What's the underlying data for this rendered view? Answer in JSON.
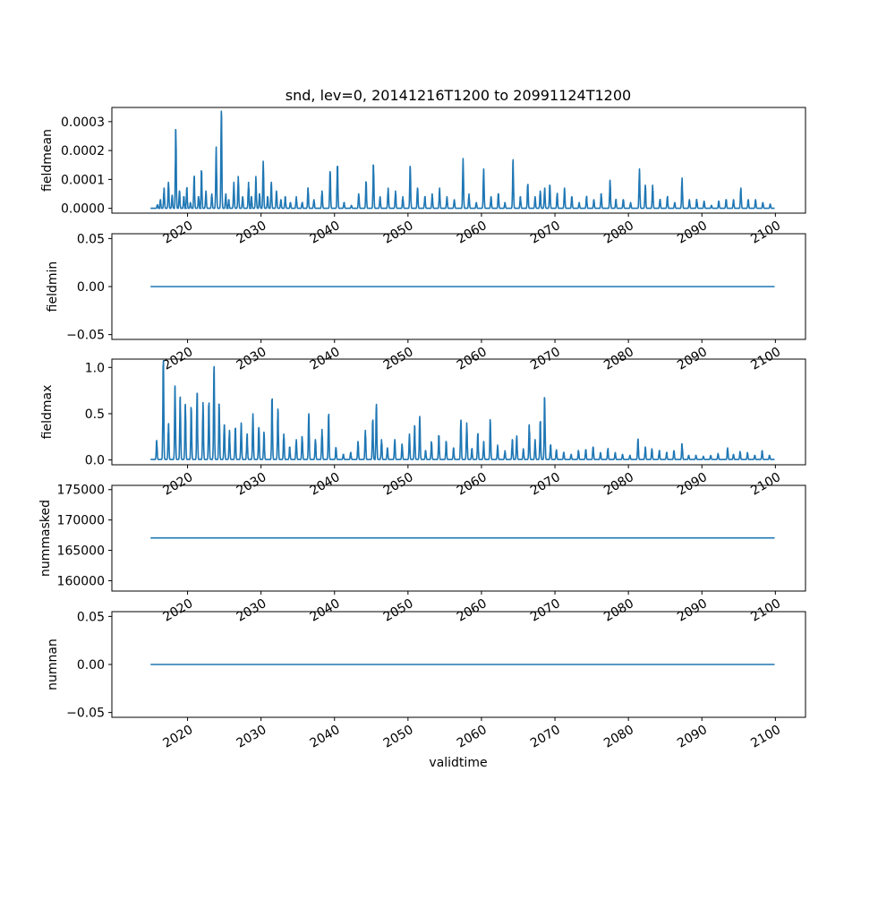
{
  "chart_data": {
    "type": "line",
    "title": "snd, lev=0, 20141216T1200 to 20991124T1200",
    "xlabel": "validtime",
    "x_range": [
      2014.96,
      2099.9
    ],
    "xlim": [
      2009.7,
      2104.1
    ],
    "x_ticks": [
      2020,
      2030,
      2040,
      2050,
      2060,
      2070,
      2080,
      2090,
      2100
    ],
    "x_tick_labels": [
      "2020",
      "2030",
      "2040",
      "2050",
      "2060",
      "2070",
      "2080",
      "2090",
      "2100"
    ],
    "line_color": "#1f77b4",
    "subplots": [
      {
        "ylabel": "fieldmean",
        "ylim": [
          -1.66e-05,
          0.000349
        ],
        "y_ticks": [
          0.0,
          0.0001,
          0.0002,
          0.0003
        ],
        "y_tick_labels": [
          "0.0000",
          "0.0001",
          "0.0002",
          "0.0003"
        ],
        "kind": "spikes",
        "base": 0.0,
        "peaks": [
          [
            2015.9,
            1.2e-05
          ],
          [
            2016.3,
            3e-05
          ],
          [
            2016.8,
            7e-05
          ],
          [
            2017.4,
            9e-05
          ],
          [
            2017.9,
            4.5e-05
          ],
          [
            2018.4,
            0.000272
          ],
          [
            2018.9,
            6e-05
          ],
          [
            2019.5,
            4e-05
          ],
          [
            2019.9,
            7e-05
          ],
          [
            2020.4,
            2e-05
          ],
          [
            2020.9,
            0.00011
          ],
          [
            2021.5,
            4e-05
          ],
          [
            2021.9,
            0.000128
          ],
          [
            2022.5,
            6e-05
          ],
          [
            2023.3,
            5e-05
          ],
          [
            2023.9,
            0.000212
          ],
          [
            2024.6,
            0.000336
          ],
          [
            2025.2,
            5e-05
          ],
          [
            2025.6,
            3e-05
          ],
          [
            2026.3,
            9e-05
          ],
          [
            2026.9,
            0.00011
          ],
          [
            2027.5,
            4e-05
          ],
          [
            2028.3,
            9e-05
          ],
          [
            2028.7,
            4e-05
          ],
          [
            2029.3,
            0.00011
          ],
          [
            2029.8,
            5e-05
          ],
          [
            2030.3,
            0.000163
          ],
          [
            2030.9,
            4e-05
          ],
          [
            2031.4,
            9e-05
          ],
          [
            2032.1,
            6e-05
          ],
          [
            2032.7,
            3e-05
          ],
          [
            2033.3,
            4e-05
          ],
          [
            2034.0,
            2e-05
          ],
          [
            2034.8,
            4e-05
          ],
          [
            2035.6,
            2e-05
          ],
          [
            2036.4,
            7e-05
          ],
          [
            2037.2,
            3e-05
          ],
          [
            2038.3,
            6e-05
          ],
          [
            2039.4,
            0.000127
          ],
          [
            2040.4,
            0.000145
          ],
          [
            2041.3,
            2e-05
          ],
          [
            2042.3,
            1e-05
          ],
          [
            2043.3,
            5e-05
          ],
          [
            2044.3,
            9e-05
          ],
          [
            2045.3,
            0.000149
          ],
          [
            2046.2,
            4e-05
          ],
          [
            2047.3,
            7e-05
          ],
          [
            2048.3,
            6e-05
          ],
          [
            2049.3,
            4e-05
          ],
          [
            2050.3,
            0.000145
          ],
          [
            2051.3,
            7e-05
          ],
          [
            2052.3,
            4e-05
          ],
          [
            2053.3,
            5e-05
          ],
          [
            2054.3,
            7e-05
          ],
          [
            2055.3,
            4e-05
          ],
          [
            2056.3,
            3e-05
          ],
          [
            2057.5,
            0.000172
          ],
          [
            2058.3,
            5e-05
          ],
          [
            2059.3,
            2e-05
          ],
          [
            2060.3,
            0.000136
          ],
          [
            2061.3,
            4e-05
          ],
          [
            2062.3,
            5e-05
          ],
          [
            2063.2,
            2e-05
          ],
          [
            2064.3,
            0.000168
          ],
          [
            2065.3,
            4e-05
          ],
          [
            2066.3,
            8e-05
          ],
          [
            2067.3,
            4e-05
          ],
          [
            2068.0,
            6e-05
          ],
          [
            2068.6,
            7e-05
          ],
          [
            2069.3,
            8e-05
          ],
          [
            2070.3,
            5e-05
          ],
          [
            2071.3,
            7e-05
          ],
          [
            2072.3,
            4e-05
          ],
          [
            2073.3,
            2e-05
          ],
          [
            2074.3,
            4e-05
          ],
          [
            2075.3,
            3e-05
          ],
          [
            2076.3,
            5e-05
          ],
          [
            2077.5,
            9.7e-05
          ],
          [
            2078.3,
            3e-05
          ],
          [
            2079.3,
            3e-05
          ],
          [
            2080.3,
            2e-05
          ],
          [
            2081.5,
            0.000136
          ],
          [
            2082.3,
            8e-05
          ],
          [
            2083.3,
            8e-05
          ],
          [
            2084.3,
            3e-05
          ],
          [
            2085.3,
            4e-05
          ],
          [
            2086.3,
            2e-05
          ],
          [
            2087.3,
            0.000105
          ],
          [
            2088.3,
            3e-05
          ],
          [
            2089.3,
            3e-05
          ],
          [
            2090.3,
            2.5e-05
          ],
          [
            2091.3,
            1e-05
          ],
          [
            2092.3,
            2.5e-05
          ],
          [
            2093.3,
            3e-05
          ],
          [
            2094.3,
            3e-05
          ],
          [
            2095.3,
            7e-05
          ],
          [
            2096.3,
            3e-05
          ],
          [
            2097.3,
            3e-05
          ],
          [
            2098.3,
            2e-05
          ],
          [
            2099.3,
            1.5e-05
          ]
        ]
      },
      {
        "ylabel": "fieldmin",
        "ylim": [
          -0.055,
          0.055
        ],
        "y_ticks": [
          -0.05,
          0.0,
          0.05
        ],
        "y_tick_labels": [
          "−0.05",
          "0.00",
          "0.05"
        ],
        "kind": "constant",
        "value": 0.0
      },
      {
        "ylabel": "fieldmax",
        "ylim": [
          -0.052,
          1.09
        ],
        "y_ticks": [
          0.0,
          0.5,
          1.0
        ],
        "y_tick_labels": [
          "0.0",
          "0.5",
          "1.0"
        ],
        "kind": "spikes",
        "base": 0.005,
        "peaks": [
          [
            2015.8,
            0.21
          ],
          [
            2016.7,
            1.04
          ],
          [
            2017.4,
            0.38
          ],
          [
            2018.3,
            0.8
          ],
          [
            2019.0,
            0.68
          ],
          [
            2019.7,
            0.6
          ],
          [
            2020.5,
            0.55
          ],
          [
            2021.3,
            0.72
          ],
          [
            2022.1,
            0.62
          ],
          [
            2022.9,
            0.6
          ],
          [
            2023.6,
            1.0
          ],
          [
            2024.3,
            0.6
          ],
          [
            2025.0,
            0.38
          ],
          [
            2025.7,
            0.32
          ],
          [
            2026.5,
            0.34
          ],
          [
            2027.3,
            0.4
          ],
          [
            2028.1,
            0.28
          ],
          [
            2028.9,
            0.5
          ],
          [
            2029.7,
            0.35
          ],
          [
            2030.4,
            0.3
          ],
          [
            2031.5,
            0.65
          ],
          [
            2032.3,
            0.55
          ],
          [
            2033.1,
            0.28
          ],
          [
            2033.9,
            0.14
          ],
          [
            2034.8,
            0.22
          ],
          [
            2035.6,
            0.25
          ],
          [
            2036.5,
            0.5
          ],
          [
            2037.4,
            0.22
          ],
          [
            2038.3,
            0.33
          ],
          [
            2039.2,
            0.48
          ],
          [
            2040.2,
            0.13
          ],
          [
            2041.2,
            0.06
          ],
          [
            2042.2,
            0.08
          ],
          [
            2043.2,
            0.2
          ],
          [
            2044.2,
            0.32
          ],
          [
            2045.2,
            0.42
          ],
          [
            2045.7,
            0.6
          ],
          [
            2046.4,
            0.22
          ],
          [
            2047.2,
            0.13
          ],
          [
            2048.2,
            0.22
          ],
          [
            2049.2,
            0.17
          ],
          [
            2050.2,
            0.28
          ],
          [
            2050.9,
            0.37
          ],
          [
            2051.6,
            0.47
          ],
          [
            2052.4,
            0.1
          ],
          [
            2053.2,
            0.19
          ],
          [
            2054.2,
            0.26
          ],
          [
            2055.2,
            0.2
          ],
          [
            2056.2,
            0.13
          ],
          [
            2057.2,
            0.43
          ],
          [
            2058.0,
            0.4
          ],
          [
            2058.7,
            0.12
          ],
          [
            2059.5,
            0.28
          ],
          [
            2060.3,
            0.2
          ],
          [
            2061.2,
            0.42
          ],
          [
            2062.2,
            0.16
          ],
          [
            2063.2,
            0.1
          ],
          [
            2064.2,
            0.22
          ],
          [
            2064.8,
            0.26
          ],
          [
            2065.7,
            0.12
          ],
          [
            2066.5,
            0.38
          ],
          [
            2067.3,
            0.22
          ],
          [
            2068.0,
            0.4
          ],
          [
            2068.6,
            0.66
          ],
          [
            2069.4,
            0.16
          ],
          [
            2070.2,
            0.11
          ],
          [
            2071.2,
            0.08
          ],
          [
            2072.2,
            0.06
          ],
          [
            2073.2,
            0.1
          ],
          [
            2074.2,
            0.11
          ],
          [
            2075.2,
            0.14
          ],
          [
            2076.2,
            0.08
          ],
          [
            2077.2,
            0.12
          ],
          [
            2078.2,
            0.08
          ],
          [
            2079.2,
            0.06
          ],
          [
            2080.2,
            0.05
          ],
          [
            2081.3,
            0.22
          ],
          [
            2082.3,
            0.14
          ],
          [
            2083.2,
            0.12
          ],
          [
            2084.2,
            0.1
          ],
          [
            2085.2,
            0.08
          ],
          [
            2086.2,
            0.1
          ],
          [
            2087.3,
            0.17
          ],
          [
            2088.2,
            0.05
          ],
          [
            2089.2,
            0.05
          ],
          [
            2090.2,
            0.04
          ],
          [
            2091.2,
            0.05
          ],
          [
            2092.2,
            0.07
          ],
          [
            2093.5,
            0.13
          ],
          [
            2094.3,
            0.06
          ],
          [
            2095.2,
            0.09
          ],
          [
            2096.2,
            0.08
          ],
          [
            2097.2,
            0.05
          ],
          [
            2098.2,
            0.1
          ],
          [
            2099.2,
            0.05
          ]
        ]
      },
      {
        "ylabel": "nummasked",
        "ylim": [
          158300,
          175700
        ],
        "y_ticks": [
          160000,
          165000,
          170000,
          175000
        ],
        "y_tick_labels": [
          "160000",
          "165000",
          "170000",
          "175000"
        ],
        "kind": "constant",
        "value": 167040
      },
      {
        "ylabel": "numnan",
        "ylim": [
          -0.055,
          0.055
        ],
        "y_ticks": [
          -0.05,
          0.0,
          0.05
        ],
        "y_tick_labels": [
          "−0.05",
          "0.00",
          "0.05"
        ],
        "kind": "constant",
        "value": 0.0
      }
    ]
  }
}
